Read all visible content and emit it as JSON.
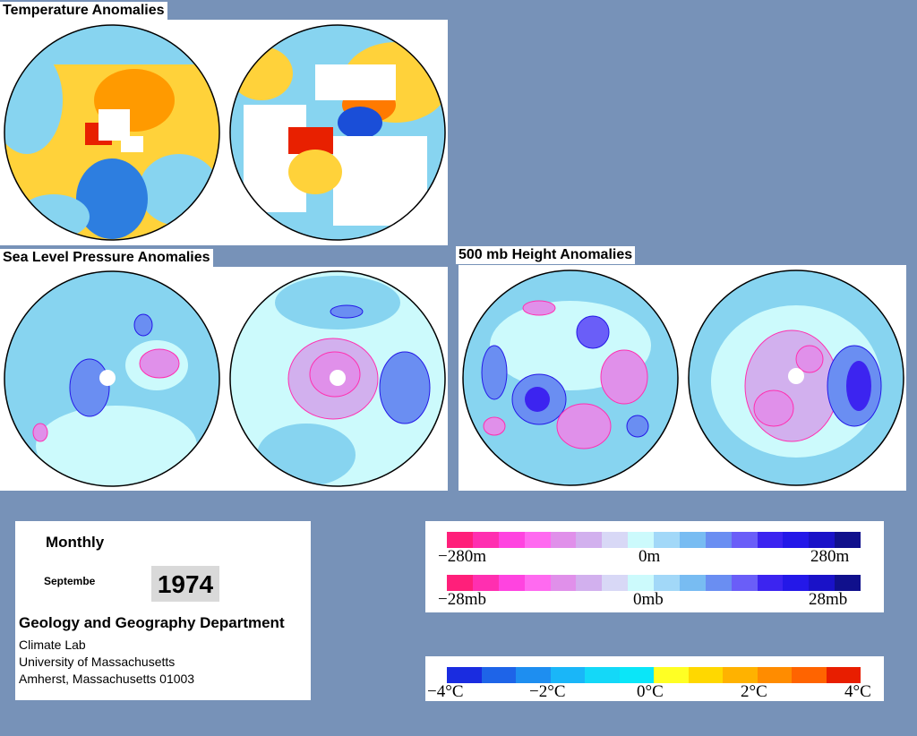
{
  "titles": {
    "temperature": "Temperature Anomalies",
    "slp": "Sea Level Pressure Anomalies",
    "height500": "500 mb Height Anomalies"
  },
  "info": {
    "period": "Monthly",
    "month": "Septembe",
    "year": "1974",
    "department": "Geology and Geography Department",
    "line1": "Climate Lab",
    "line2": "University of Massachusetts",
    "line3": "Amherst, Massachusetts 01003"
  },
  "legends": {
    "height": {
      "labels": [
        "−280m",
        "0m",
        "280m"
      ]
    },
    "pressure": {
      "labels": [
        "−28mb",
        "0mb",
        "28mb"
      ]
    },
    "temperature": {
      "labels": [
        "−4°C",
        "−2°C",
        "0°C",
        "2°C",
        "4°C"
      ]
    }
  },
  "colors": {
    "background": "#7792b8",
    "ocean_cool": "#87d4f0",
    "warm": "#ffd23a",
    "hot": "#ff7a00",
    "cold": "#2d7ee0",
    "contour_low": "#e7b8f0",
    "contour_high": "#4a5ee0"
  },
  "scales": {
    "height_pressure": [
      "#ff1f7a",
      "#ff2fb0",
      "#ff44e0",
      "#ff6af0",
      "#e090ea",
      "#d2b0ee",
      "#d8d8f6",
      "#ccfafc",
      "#a2d8f8",
      "#78bcf2",
      "#6a8ef2",
      "#6a5ef8",
      "#3c24f0",
      "#2418e8",
      "#1a12c8",
      "#10108c"
    ],
    "temperature": [
      "#1a2ce0",
      "#1e64e8",
      "#1e8ef0",
      "#1ab6f8",
      "#14d8f8",
      "#0ae6f8",
      "#ffff24",
      "#ffd800",
      "#ffb200",
      "#ff8c00",
      "#ff6400",
      "#e81e00"
    ]
  }
}
